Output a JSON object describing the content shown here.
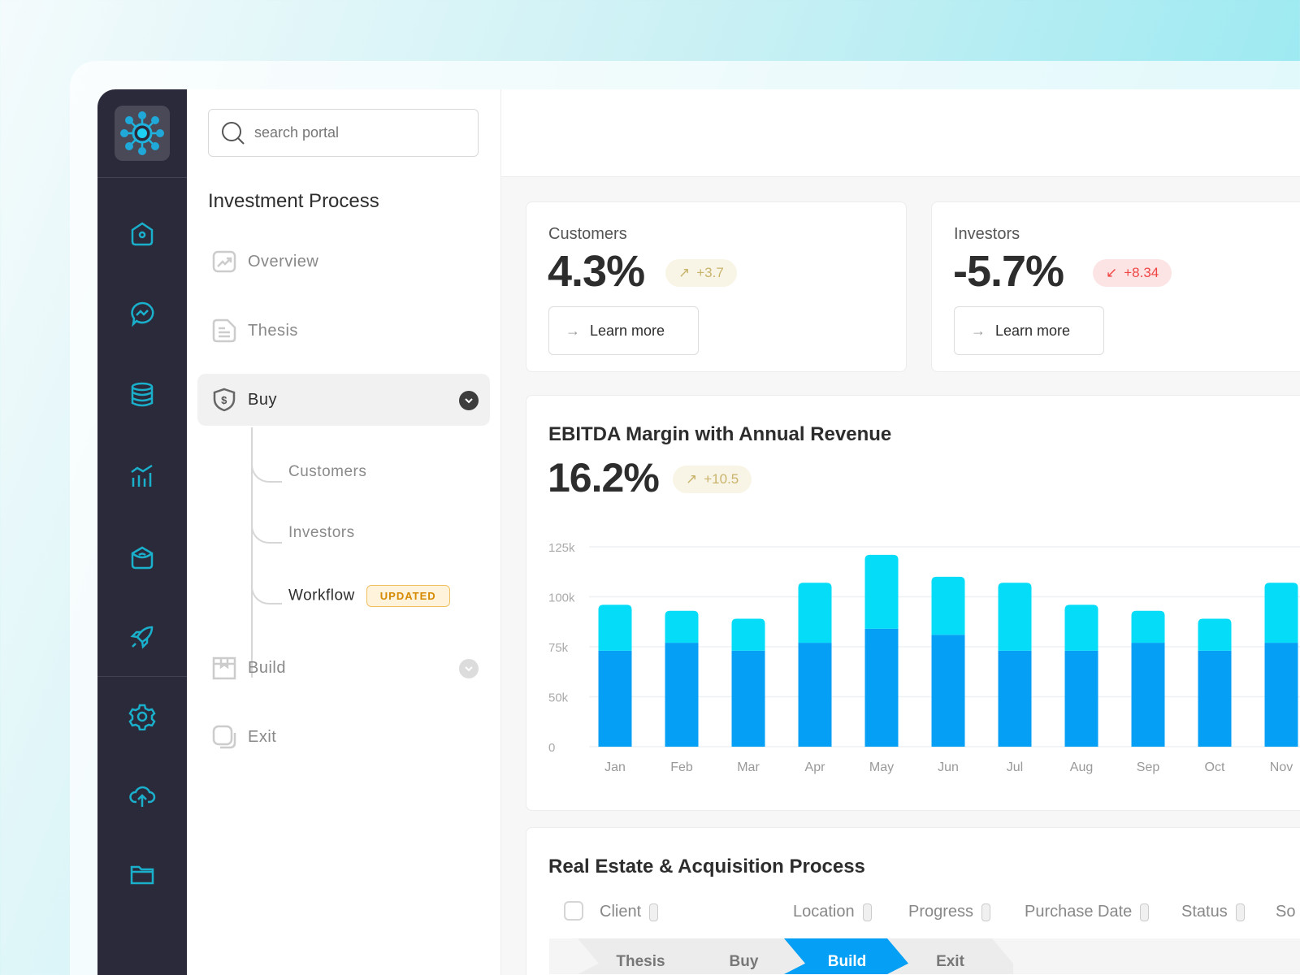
{
  "search": {
    "placeholder": "search portal"
  },
  "rail": {
    "icons": [
      "home-icon",
      "chat-icon",
      "database-icon",
      "analytics-icon",
      "inbox-icon",
      "rocket-icon",
      "settings-icon",
      "cloud-upload-icon",
      "folder-icon"
    ]
  },
  "nav": {
    "title": "Investment Process",
    "items": [
      {
        "label": "Overview"
      },
      {
        "label": "Thesis"
      },
      {
        "label": "Buy"
      },
      {
        "label": "Build"
      },
      {
        "label": "Exit"
      }
    ],
    "sub_items": [
      {
        "label": "Customers"
      },
      {
        "label": "Investors"
      },
      {
        "label": "Workflow",
        "badge": "UPDATED"
      }
    ]
  },
  "cards": [
    {
      "label": "Customers",
      "value": "4.3%",
      "delta": "+3.7",
      "trend": "up",
      "button": "Learn more"
    },
    {
      "label": "Investors",
      "value": "-5.7%",
      "delta": "+8.34",
      "trend": "down",
      "button": "Learn more"
    }
  ],
  "colors": {
    "accent": "#05a0f5",
    "accent_light": "#05dcf8",
    "rail": "#2b2a3a",
    "badge": "#d58a00",
    "up": "#c9b36b",
    "down": "#f04545"
  },
  "ebitda": {
    "title": "EBITDA Margin with Annual Revenue",
    "value": "16.2%",
    "delta": "+10.5"
  },
  "chart_data": {
    "type": "bar",
    "stacked": true,
    "categories": [
      "Jan",
      "Feb",
      "Mar",
      "Apr",
      "May",
      "Jun",
      "Jul",
      "Aug",
      "Sep",
      "Oct",
      "Nov"
    ],
    "y_ticks": [
      "125k",
      "100k",
      "75k",
      "50k",
      "0"
    ],
    "y_tick_values": [
      125000,
      100000,
      75000,
      50000,
      0
    ],
    "series": [
      {
        "values": [
          73000,
          77000,
          73000,
          77000,
          84000,
          81000,
          73000,
          73000,
          77000,
          73000,
          77000
        ],
        "color": "#05a0f5"
      },
      {
        "values": [
          23000,
          16000,
          16000,
          30000,
          37000,
          29000,
          34000,
          23000,
          16000,
          16000,
          30000
        ],
        "color": "#05dcf8"
      }
    ],
    "grid": true
  },
  "table": {
    "title": "Real Estate & Acquisition Process",
    "columns": [
      "Client",
      "Location",
      "Progress",
      "Purchase Date",
      "Status",
      "So"
    ],
    "steps": [
      {
        "label": "Thesis"
      },
      {
        "label": "Buy"
      },
      {
        "label": "Build",
        "active": true
      },
      {
        "label": "Exit"
      }
    ]
  }
}
